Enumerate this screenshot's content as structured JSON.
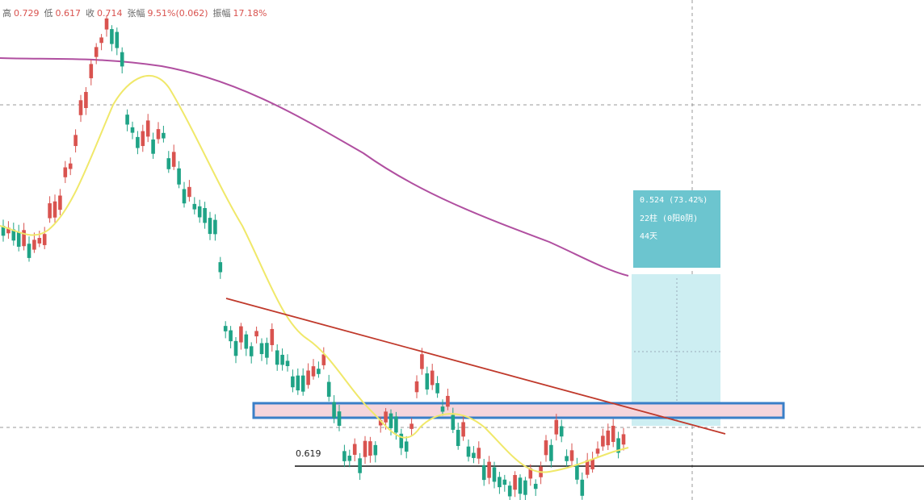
{
  "header": {
    "items": [
      {
        "label": "高",
        "value": "0.729"
      },
      {
        "label": "低",
        "value": "0.617"
      },
      {
        "label": "收",
        "value": "0.714"
      },
      {
        "label": "张幅",
        "value": "9.51%(0.062)"
      },
      {
        "label": "振幅",
        "value": "17.18%"
      }
    ]
  },
  "level_label": "0.619",
  "measure": {
    "change": "0.524 (73.42%)",
    "bars": "22柱 (0阳0阴)",
    "days": "44天"
  }
}
